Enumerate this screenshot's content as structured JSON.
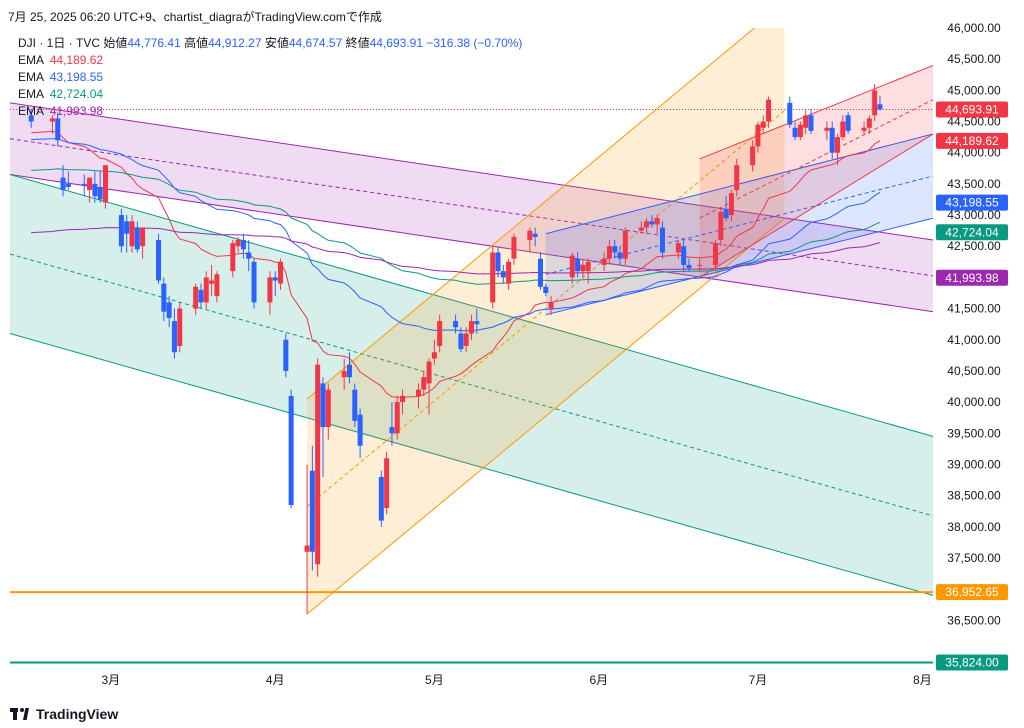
{
  "header": {
    "caption": "7月 25, 2025 06:20 UTC+9、chartist_diagraがTradingView.comで作成"
  },
  "legend": {
    "symbol": "DJI · 1日 · TVC",
    "open_label": "始値",
    "open": "44,776.41",
    "high_label": "高値",
    "high": "44,912.27",
    "low_label": "安値",
    "low": "44,674.57",
    "close_label": "終値",
    "close": "44,693.91",
    "change": "−316.38 (−0.70%)",
    "ema": [
      {
        "label": "EMA",
        "value": "44,189.62",
        "color": "#f23645"
      },
      {
        "label": "EMA",
        "value": "43,198.55",
        "color": "#2962ff"
      },
      {
        "label": "EMA",
        "value": "42,724.04",
        "color": "#089981"
      },
      {
        "label": "EMA",
        "value": "41,993.98",
        "color": "#9c27b0"
      }
    ]
  },
  "footer": {
    "brand": "TradingView"
  },
  "chart_data": {
    "type": "candlestick",
    "symbol": "DJI",
    "timeframe": "1日",
    "y_axis": {
      "ticks": [
        "36,500.00",
        "37,000.00",
        "37,500.00",
        "38,000.00",
        "38,500.00",
        "39,000.00",
        "39,500.00",
        "40,000.00",
        "40,500.00",
        "41,000.00",
        "41,500.00",
        "42,000.00",
        "42,500.00",
        "43,000.00",
        "43,500.00",
        "44,000.00",
        "44,500.00",
        "45,000.00",
        "45,500.00",
        "46,000.00"
      ],
      "range": [
        35800,
        46000
      ]
    },
    "x_axis": {
      "ticks": [
        "3月",
        "4月",
        "5月",
        "6月",
        "7月",
        "8月"
      ]
    },
    "price_tags": [
      {
        "value": 44693.91,
        "label": "44,693.91",
        "color": "#f23645"
      },
      {
        "value": 44189.62,
        "label": "44,189.62",
        "color": "#f23645"
      },
      {
        "value": 43198.55,
        "label": "43,198.55",
        "color": "#2962ff"
      },
      {
        "value": 42724.04,
        "label": "42,724.04",
        "color": "#089981"
      },
      {
        "value": 41993.98,
        "label": "41,993.98",
        "color": "#9c27b0"
      },
      {
        "value": 36952.65,
        "label": "36,952.65",
        "color": "#ff9800"
      },
      {
        "value": 35824.0,
        "label": "35,824.00",
        "color": "#089981"
      }
    ],
    "horizontal_lines": [
      {
        "value": 36952.65,
        "color": "#ff9800"
      },
      {
        "value": 35824.0,
        "color": "#089981"
      }
    ],
    "ema_series_colors": [
      "#f23645",
      "#2962ff",
      "#089981",
      "#9c27b0"
    ],
    "up_color": "#f23645",
    "down_color": "#2962ff",
    "channels": [
      {
        "name": "purple-channel",
        "color": "#9c27b0"
      },
      {
        "name": "green-channel",
        "color": "#089981"
      },
      {
        "name": "orange-channel",
        "color": "#ff9800"
      },
      {
        "name": "blue-channel",
        "color": "#2962ff"
      },
      {
        "name": "red-channel",
        "color": "#f23645"
      }
    ],
    "candles": [
      {
        "d": "2025-02-14",
        "o": 44600,
        "h": 44700,
        "l": 44400,
        "c": 44500
      },
      {
        "d": "2025-02-18",
        "o": 44500,
        "h": 44600,
        "l": 44300,
        "c": 44550
      },
      {
        "d": "2025-02-19",
        "o": 44550,
        "h": 44650,
        "l": 44100,
        "c": 44200
      },
      {
        "d": "2025-02-20",
        "o": 43600,
        "h": 43800,
        "l": 43300,
        "c": 43400
      },
      {
        "d": "2025-02-21",
        "o": 43500,
        "h": 43700,
        "l": 43400,
        "c": 43450
      },
      {
        "d": "2025-02-24",
        "o": 43500,
        "h": 43650,
        "l": 43300,
        "c": 43480
      },
      {
        "d": "2025-02-25",
        "o": 43400,
        "h": 43600,
        "l": 43200,
        "c": 43600
      },
      {
        "d": "2025-02-26",
        "o": 43500,
        "h": 43700,
        "l": 43200,
        "c": 43300
      },
      {
        "d": "2025-02-27",
        "o": 43450,
        "h": 43700,
        "l": 43200,
        "c": 43250
      },
      {
        "d": "2025-02-28",
        "o": 43200,
        "h": 43800,
        "l": 43100,
        "c": 43800
      },
      {
        "d": "2025-03-03",
        "o": 43000,
        "h": 43100,
        "l": 42400,
        "c": 42500
      },
      {
        "d": "2025-03-04",
        "o": 42900,
        "h": 43000,
        "l": 42400,
        "c": 42700
      },
      {
        "d": "2025-03-05",
        "o": 42500,
        "h": 43000,
        "l": 42400,
        "c": 42900
      },
      {
        "d": "2025-03-06",
        "o": 42800,
        "h": 42900,
        "l": 42400,
        "c": 42450
      },
      {
        "d": "2025-03-07",
        "o": 42500,
        "h": 42800,
        "l": 42300,
        "c": 42800
      },
      {
        "d": "2025-03-10",
        "o": 42600,
        "h": 42700,
        "l": 41900,
        "c": 41950
      },
      {
        "d": "2025-03-11",
        "o": 41900,
        "h": 42000,
        "l": 41300,
        "c": 41450
      },
      {
        "d": "2025-03-12",
        "o": 41600,
        "h": 41700,
        "l": 41200,
        "c": 41350
      },
      {
        "d": "2025-03-13",
        "o": 41300,
        "h": 41500,
        "l": 40700,
        "c": 40800
      },
      {
        "d": "2025-03-14",
        "o": 40900,
        "h": 41600,
        "l": 40800,
        "c": 41500
      },
      {
        "d": "2025-03-17",
        "o": 41500,
        "h": 41900,
        "l": 41400,
        "c": 41850
      },
      {
        "d": "2025-03-18",
        "o": 41800,
        "h": 41900,
        "l": 41500,
        "c": 41600
      },
      {
        "d": "2025-03-19",
        "o": 41600,
        "h": 42100,
        "l": 41500,
        "c": 42000
      },
      {
        "d": "2025-03-20",
        "o": 41900,
        "h": 42200,
        "l": 41700,
        "c": 41950
      },
      {
        "d": "2025-03-21",
        "o": 41700,
        "h": 42100,
        "l": 41600,
        "c": 42050
      },
      {
        "d": "2025-03-24",
        "o": 42100,
        "h": 42600,
        "l": 42000,
        "c": 42550
      },
      {
        "d": "2025-03-25",
        "o": 42500,
        "h": 42650,
        "l": 42400,
        "c": 42600
      },
      {
        "d": "2025-03-26",
        "o": 42600,
        "h": 42700,
        "l": 42300,
        "c": 42450
      },
      {
        "d": "2025-03-27",
        "o": 42400,
        "h": 42600,
        "l": 42100,
        "c": 42300
      },
      {
        "d": "2025-03-28",
        "o": 42250,
        "h": 42300,
        "l": 41500,
        "c": 41600
      },
      {
        "d": "2025-03-31",
        "o": 41600,
        "h": 42100,
        "l": 41400,
        "c": 42000
      },
      {
        "d": "2025-04-01",
        "o": 42000,
        "h": 42100,
        "l": 41700,
        "c": 41950
      },
      {
        "d": "2025-04-02",
        "o": 41900,
        "h": 42300,
        "l": 41800,
        "c": 42250
      },
      {
        "d": "2025-04-03",
        "o": 41000,
        "h": 41100,
        "l": 40400,
        "c": 40500
      },
      {
        "d": "2025-04-04",
        "o": 40100,
        "h": 40200,
        "l": 38300,
        "c": 38350
      },
      {
        "d": "2025-04-07",
        "o": 37600,
        "h": 39000,
        "l": 36600,
        "c": 37700
      },
      {
        "d": "2025-04-08",
        "o": 38900,
        "h": 39300,
        "l": 37300,
        "c": 37600
      },
      {
        "d": "2025-04-09",
        "o": 37400,
        "h": 40700,
        "l": 37200,
        "c": 40600
      },
      {
        "d": "2025-04-10",
        "o": 40300,
        "h": 40400,
        "l": 38800,
        "c": 39600
      },
      {
        "d": "2025-04-11",
        "o": 39600,
        "h": 40300,
        "l": 39400,
        "c": 40200
      },
      {
        "d": "2025-04-14",
        "o": 40400,
        "h": 40700,
        "l": 40200,
        "c": 40500
      },
      {
        "d": "2025-04-15",
        "o": 40600,
        "h": 40800,
        "l": 40300,
        "c": 40400
      },
      {
        "d": "2025-04-16",
        "o": 40200,
        "h": 40300,
        "l": 39600,
        "c": 39700
      },
      {
        "d": "2025-04-17",
        "o": 39800,
        "h": 39900,
        "l": 39100,
        "c": 39300
      },
      {
        "d": "2025-04-21",
        "o": 38800,
        "h": 38900,
        "l": 38000,
        "c": 38100
      },
      {
        "d": "2025-04-22",
        "o": 38300,
        "h": 39200,
        "l": 38200,
        "c": 39100
      },
      {
        "d": "2025-04-23",
        "o": 39600,
        "h": 40000,
        "l": 39300,
        "c": 39500
      },
      {
        "d": "2025-04-24",
        "o": 39500,
        "h": 40100,
        "l": 39400,
        "c": 40000
      },
      {
        "d": "2025-04-25",
        "o": 40000,
        "h": 40200,
        "l": 39800,
        "c": 40100
      },
      {
        "d": "2025-04-28",
        "o": 40100,
        "h": 40300,
        "l": 39900,
        "c": 40200
      },
      {
        "d": "2025-04-29",
        "o": 40200,
        "h": 40500,
        "l": 40100,
        "c": 40400
      },
      {
        "d": "2025-04-30",
        "o": 40300,
        "h": 40700,
        "l": 39800,
        "c": 40650
      },
      {
        "d": "2025-05-01",
        "o": 40700,
        "h": 41000,
        "l": 40600,
        "c": 40800
      },
      {
        "d": "2025-05-02",
        "o": 40900,
        "h": 41400,
        "l": 40800,
        "c": 41300
      },
      {
        "d": "2025-05-05",
        "o": 41300,
        "h": 41400,
        "l": 41100,
        "c": 41200
      },
      {
        "d": "2025-05-06",
        "o": 41100,
        "h": 41200,
        "l": 40800,
        "c": 40850
      },
      {
        "d": "2025-05-07",
        "o": 40900,
        "h": 41200,
        "l": 40800,
        "c": 41100
      },
      {
        "d": "2025-05-08",
        "o": 41100,
        "h": 41400,
        "l": 41000,
        "c": 41300
      },
      {
        "d": "2025-05-09",
        "o": 41300,
        "h": 41500,
        "l": 41100,
        "c": 41250
      },
      {
        "d": "2025-05-12",
        "o": 41600,
        "h": 42500,
        "l": 41500,
        "c": 42400
      },
      {
        "d": "2025-05-13",
        "o": 42400,
        "h": 42500,
        "l": 42000,
        "c": 42100
      },
      {
        "d": "2025-05-14",
        "o": 42100,
        "h": 42200,
        "l": 41900,
        "c": 42000
      },
      {
        "d": "2025-05-15",
        "o": 41900,
        "h": 42300,
        "l": 41800,
        "c": 42250
      },
      {
        "d": "2025-05-16",
        "o": 42300,
        "h": 42700,
        "l": 42200,
        "c": 42650
      },
      {
        "d": "2025-05-19",
        "o": 42600,
        "h": 42800,
        "l": 42400,
        "c": 42750
      },
      {
        "d": "2025-05-20",
        "o": 42700,
        "h": 42800,
        "l": 42500,
        "c": 42650
      },
      {
        "d": "2025-05-21",
        "o": 42300,
        "h": 42400,
        "l": 41800,
        "c": 41850
      },
      {
        "d": "2025-05-22",
        "o": 41850,
        "h": 41900,
        "l": 41700,
        "c": 41750
      },
      {
        "d": "2025-05-23",
        "o": 41500,
        "h": 41700,
        "l": 41400,
        "c": 41600
      },
      {
        "d": "2025-05-27",
        "o": 42000,
        "h": 42400,
        "l": 41900,
        "c": 42350
      },
      {
        "d": "2025-05-28",
        "o": 42300,
        "h": 42400,
        "l": 42000,
        "c": 42100
      },
      {
        "d": "2025-05-29",
        "o": 42100,
        "h": 42300,
        "l": 42000,
        "c": 42200
      },
      {
        "d": "2025-05-30",
        "o": 42100,
        "h": 42300,
        "l": 41900,
        "c": 42250
      },
      {
        "d": "2025-06-02",
        "o": 42200,
        "h": 42400,
        "l": 42100,
        "c": 42300
      },
      {
        "d": "2025-06-03",
        "o": 42300,
        "h": 42600,
        "l": 42200,
        "c": 42500
      },
      {
        "d": "2025-06-04",
        "o": 42500,
        "h": 42600,
        "l": 42300,
        "c": 42400
      },
      {
        "d": "2025-06-05",
        "o": 42400,
        "h": 42500,
        "l": 42200,
        "c": 42300
      },
      {
        "d": "2025-06-06",
        "o": 42300,
        "h": 42800,
        "l": 42200,
        "c": 42750
      },
      {
        "d": "2025-06-09",
        "o": 42750,
        "h": 42900,
        "l": 42700,
        "c": 42800
      },
      {
        "d": "2025-06-10",
        "o": 42800,
        "h": 42950,
        "l": 42700,
        "c": 42900
      },
      {
        "d": "2025-06-11",
        "o": 42900,
        "h": 43000,
        "l": 42800,
        "c": 42850
      },
      {
        "d": "2025-06-12",
        "o": 42850,
        "h": 43000,
        "l": 42700,
        "c": 42950
      },
      {
        "d": "2025-06-13",
        "o": 42800,
        "h": 42900,
        "l": 42300,
        "c": 42400
      },
      {
        "d": "2025-06-16",
        "o": 42400,
        "h": 42600,
        "l": 42300,
        "c": 42550
      },
      {
        "d": "2025-06-17",
        "o": 42500,
        "h": 42600,
        "l": 42100,
        "c": 42200
      },
      {
        "d": "2025-06-18",
        "o": 42200,
        "h": 42300,
        "l": 42100,
        "c": 42150
      },
      {
        "d": "2025-06-20",
        "o": 42200,
        "h": 42300,
        "l": 42100,
        "c": 42200
      },
      {
        "d": "2025-06-23",
        "o": 42200,
        "h": 42600,
        "l": 42100,
        "c": 42550
      },
      {
        "d": "2025-06-24",
        "o": 42600,
        "h": 43100,
        "l": 42500,
        "c": 43050
      },
      {
        "d": "2025-06-25",
        "o": 43100,
        "h": 43300,
        "l": 42900,
        "c": 42950
      },
      {
        "d": "2025-06-26",
        "o": 43000,
        "h": 43400,
        "l": 42900,
        "c": 43350
      },
      {
        "d": "2025-06-27",
        "o": 43400,
        "h": 43900,
        "l": 43300,
        "c": 43800
      },
      {
        "d": "2025-06-30",
        "o": 43800,
        "h": 44200,
        "l": 43700,
        "c": 44100
      },
      {
        "d": "2025-07-01",
        "o": 44100,
        "h": 44500,
        "l": 44000,
        "c": 44450
      },
      {
        "d": "2025-07-02",
        "o": 44400,
        "h": 44600,
        "l": 44300,
        "c": 44500
      },
      {
        "d": "2025-07-03",
        "o": 44500,
        "h": 44900,
        "l": 44400,
        "c": 44850
      },
      {
        "d": "2025-07-07",
        "o": 44800,
        "h": 44900,
        "l": 44400,
        "c": 44450
      },
      {
        "d": "2025-07-08",
        "o": 44400,
        "h": 44500,
        "l": 44200,
        "c": 44250
      },
      {
        "d": "2025-07-09",
        "o": 44250,
        "h": 44500,
        "l": 44200,
        "c": 44450
      },
      {
        "d": "2025-07-10",
        "o": 44400,
        "h": 44700,
        "l": 44300,
        "c": 44600
      },
      {
        "d": "2025-07-11",
        "o": 44600,
        "h": 44700,
        "l": 44300,
        "c": 44350
      },
      {
        "d": "2025-07-14",
        "o": 44350,
        "h": 44500,
        "l": 44200,
        "c": 44400
      },
      {
        "d": "2025-07-15",
        "o": 44400,
        "h": 44500,
        "l": 43900,
        "c": 44000
      },
      {
        "d": "2025-07-16",
        "o": 44000,
        "h": 44300,
        "l": 43800,
        "c": 44250
      },
      {
        "d": "2025-07-17",
        "o": 44250,
        "h": 44600,
        "l": 44200,
        "c": 44500
      },
      {
        "d": "2025-07-18",
        "o": 44600,
        "h": 44650,
        "l": 44300,
        "c": 44350
      },
      {
        "d": "2025-07-21",
        "o": 44350,
        "h": 44500,
        "l": 44300,
        "c": 44400
      },
      {
        "d": "2025-07-22",
        "o": 44400,
        "h": 44600,
        "l": 44300,
        "c": 44550
      },
      {
        "d": "2025-07-23",
        "o": 44600,
        "h": 45100,
        "l": 44500,
        "c": 45000
      },
      {
        "d": "2025-07-24",
        "o": 44776.41,
        "h": 44912.27,
        "l": 44674.57,
        "c": 44693.91
      }
    ]
  }
}
